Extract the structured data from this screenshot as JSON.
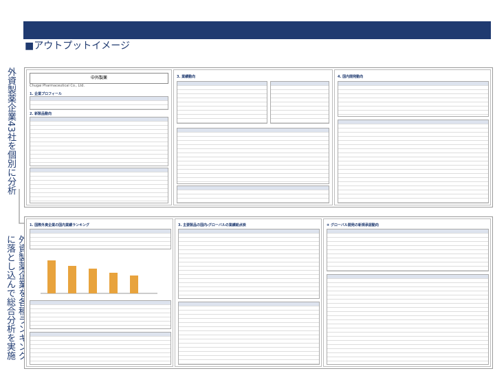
{
  "header": {
    "title": "■アウトプットイメージ"
  },
  "side_notes": [
    "外資製薬企業43社を個別に分析",
    "外資製薬企業を各種ランキングに落とし込んで総合分析を実施"
  ],
  "top_report": {
    "company": "中外製薬",
    "company_en": "Chugai Pharmaceutical Co., Ltd.",
    "sections": [
      "1. 企業プロフィール",
      "2. 新製品動向",
      "3. 業績動向",
      "4. 国内開発動向"
    ]
  },
  "bottom_report": {
    "sections": [
      "1. 国際外資企業の国内業績ランキング",
      "3. 主要製品の国内・グローバルの業績総点検",
      "④ グローバル開発の新規承認動向"
    ]
  }
}
